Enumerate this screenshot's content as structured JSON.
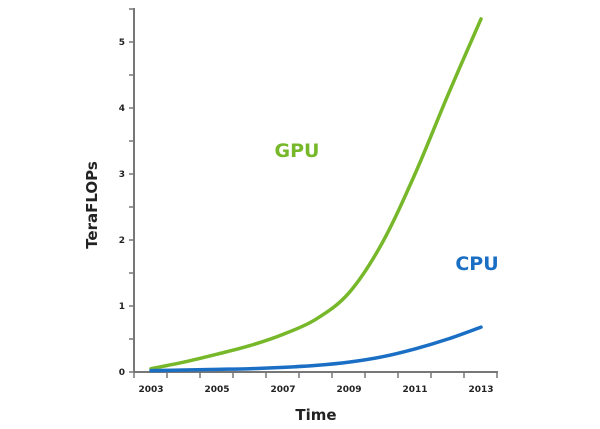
{
  "chart_data": {
    "type": "line",
    "title": "",
    "xlabel": "Time",
    "ylabel": "TeraFLOPs",
    "x": [
      2003,
      2004,
      2005,
      2006,
      2007,
      2008,
      2009,
      2010,
      2011,
      2012,
      2013
    ],
    "x_tick_labels": [
      "2003",
      "2005",
      "2007",
      "2009",
      "2011",
      "2013"
    ],
    "y_tick_labels": [
      "0",
      "1",
      "2",
      "3",
      "4",
      "5"
    ],
    "ylim": [
      0,
      5.6
    ],
    "grid": false,
    "legend": "inline labels",
    "series": [
      {
        "name": "GPU",
        "color": "#76b82a",
        "values": [
          0.05,
          0.15,
          0.27,
          0.4,
          0.57,
          0.8,
          1.2,
          1.95,
          3.0,
          4.2,
          5.35
        ]
      },
      {
        "name": "CPU",
        "color": "#1a6fc4",
        "values": [
          0.02,
          0.03,
          0.04,
          0.05,
          0.07,
          0.1,
          0.15,
          0.23,
          0.35,
          0.5,
          0.68
        ]
      }
    ]
  }
}
